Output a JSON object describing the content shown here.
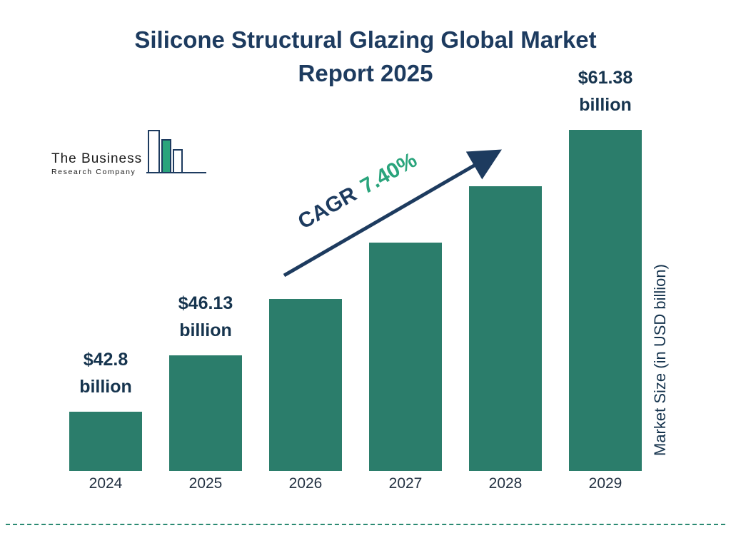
{
  "title": "Silicone Structural Glazing Global Market Report 2025",
  "title_lines": [
    "Silicone Structural Glazing Global Market",
    "Report 2025"
  ],
  "logo": {
    "line1": "The Business",
    "line2": "Research Company"
  },
  "annotation": {
    "cagr_label": "CAGR",
    "cagr_value": "7.40%"
  },
  "y_axis_label": "Market Size (in USD billion)",
  "chart_data": {
    "type": "bar",
    "title": "Silicone Structural Glazing Global Market Report 2025",
    "categories": [
      "2024",
      "2025",
      "2026",
      "2027",
      "2028",
      "2029"
    ],
    "values": [
      42.8,
      46.13,
      49.54,
      53.21,
      57.15,
      61.38
    ],
    "values_note": "Only 2024, 2025 and 2029 are labeled on the chart; 2026-2028 interpolated from the stated 7.40% CAGR",
    "value_labels": [
      {
        "category": "2024",
        "lines": [
          "$42.8",
          "billion"
        ]
      },
      {
        "category": "2025",
        "lines": [
          "$46.13",
          "billion"
        ]
      },
      {
        "category": "2029",
        "lines": [
          "$61.38",
          "billion"
        ]
      }
    ],
    "cagr": "7.40%",
    "xlabel": "",
    "ylabel": "Market Size (in USD billion)",
    "grid": false,
    "legend": false,
    "bar_color": "#2b7d6b",
    "label_color": "#16344e",
    "accent_navy": "#1d3b5f",
    "accent_green": "#2aa47c"
  }
}
